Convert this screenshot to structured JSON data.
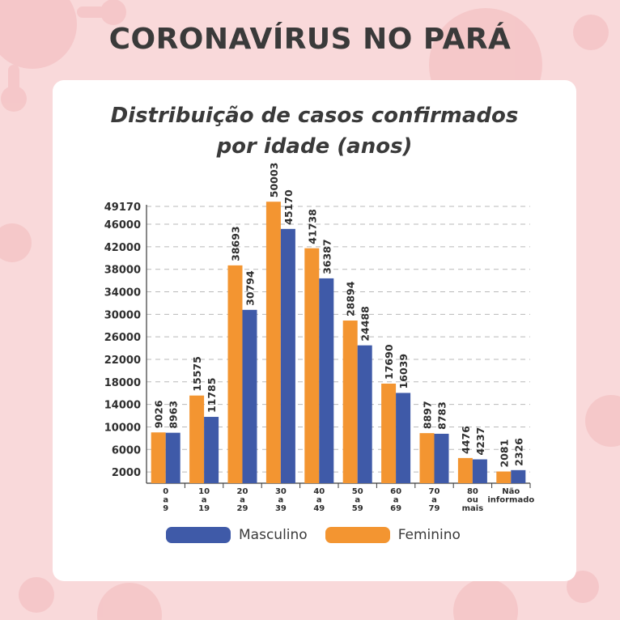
{
  "header": {
    "title": "CORONAVÍRUS NO PARÁ"
  },
  "colors": {
    "background": "#f9d9da",
    "decor": "#f2b9bc",
    "card": "#ffffff",
    "feminino": "#f39531",
    "masculino": "#3f5aa8"
  },
  "chart_data": {
    "type": "bar",
    "title_lines": [
      "Distribuição de casos confirmados",
      "por idade (anos)"
    ],
    "categories": [
      [
        "0",
        "a",
        "9"
      ],
      [
        "10",
        "a",
        "19"
      ],
      [
        "20",
        "a",
        "29"
      ],
      [
        "30",
        "a",
        "39"
      ],
      [
        "40",
        "a",
        "49"
      ],
      [
        "50",
        "a",
        "59"
      ],
      [
        "60",
        "a",
        "69"
      ],
      [
        "70",
        "a",
        "79"
      ],
      [
        "80",
        "ou",
        "mais"
      ],
      [
        "Não",
        "informado"
      ]
    ],
    "series": [
      {
        "name": "Feminino",
        "color": "#f39531",
        "values": [
          9026,
          15575,
          38693,
          50003,
          41738,
          28894,
          17690,
          8897,
          4476,
          2081
        ]
      },
      {
        "name": "Masculino",
        "color": "#3f5aa8",
        "values": [
          8963,
          11785,
          30794,
          45170,
          36387,
          24488,
          16039,
          8783,
          4237,
          2326
        ]
      }
    ],
    "yticks": [
      2000,
      6000,
      10000,
      14000,
      18000,
      22000,
      26000,
      30000,
      34000,
      38000,
      42000,
      46000,
      49170
    ],
    "ylim": [
      0,
      49170
    ],
    "grid": true,
    "legend": {
      "position": "bottom",
      "order": [
        "Masculino",
        "Feminino"
      ]
    }
  }
}
